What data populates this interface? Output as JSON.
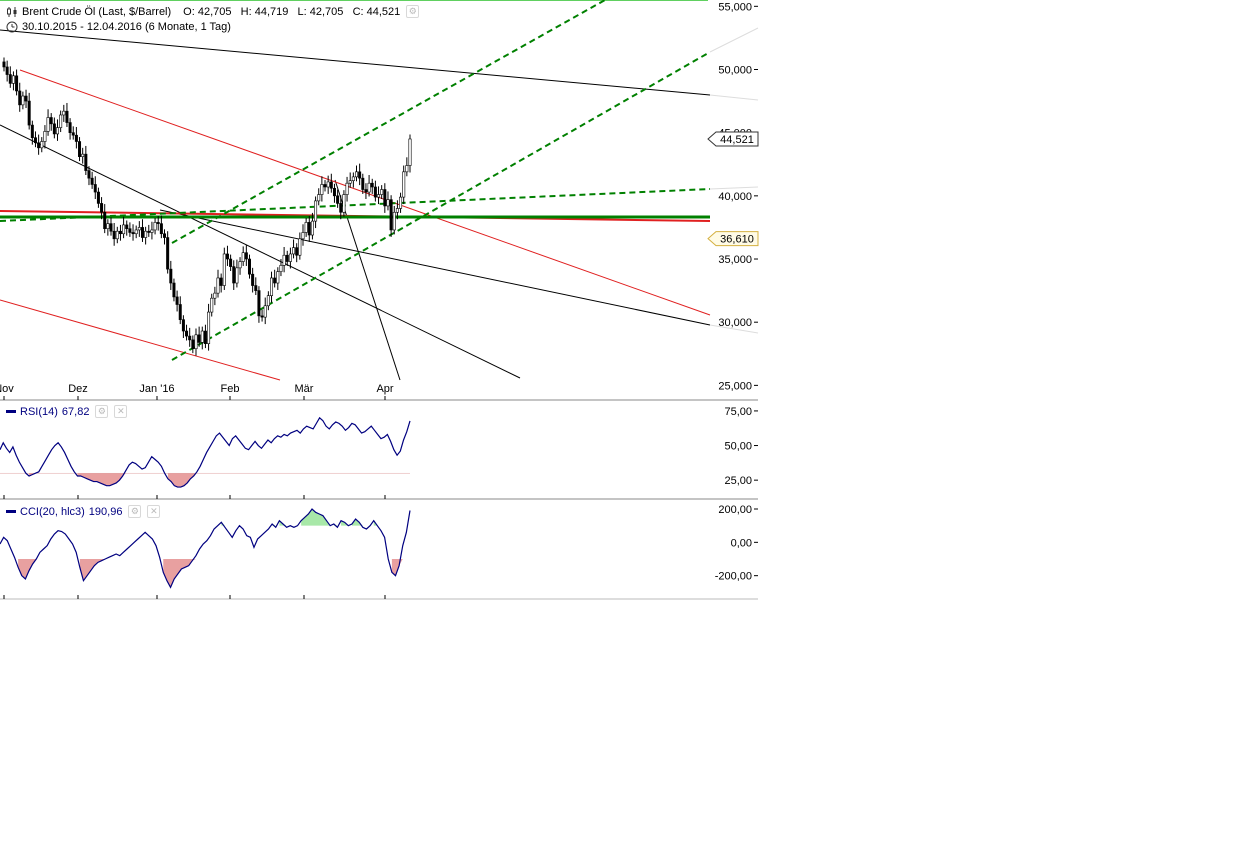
{
  "header": {
    "instrument": "Brent Crude Öl (Last, $/Barrel)",
    "ohlc": "O: 42,705   H: 44,719   L: 42,705   C: 44,521",
    "range": "30.10.2015 - 12.04.2016 (6 Monate, 1 Tag)"
  },
  "price_axis": {
    "ticks": [
      "55,000",
      "50,000",
      "45,000",
      "40,000",
      "35,000",
      "30,000",
      "25,000"
    ],
    "last_price_label": "44,521",
    "level_label": "36,610"
  },
  "x_axis": {
    "labels": [
      "Nov",
      "Dez",
      "Jan '16",
      "Feb",
      "Mär",
      "Apr"
    ]
  },
  "rsi": {
    "title": "RSI(14)",
    "value": "67,82",
    "ticks": [
      "75,00",
      "50,00",
      "25,00"
    ]
  },
  "cci": {
    "title": "CCI(20, hlc3)",
    "value": "190,96",
    "ticks": [
      "200,00",
      "0,00",
      "-200,00"
    ]
  },
  "colors": {
    "up_candle": "#ffffff",
    "down_candle": "#000000",
    "indicator_line": "#000080",
    "trend_red": "#e02020",
    "trend_green": "#008000",
    "oversold_fill": "#e8a0a0",
    "overbought_fill": "#a8e8a8"
  },
  "chart_data": [
    {
      "type": "candlestick",
      "title": "Brent Crude Öl (Last, $/Barrel)",
      "y_unit": "$/Barrel",
      "ylim": [
        24,
        55.5
      ],
      "x_labels": [
        "Nov",
        "Dez",
        "Jan '16",
        "Feb",
        "Mär",
        "Apr"
      ],
      "closes": [
        50.2,
        49.6,
        48.9,
        49.5,
        48.3,
        47.2,
        47.9,
        47.5,
        45.6,
        44.6,
        44.2,
        43.8,
        44.3,
        45.1,
        46.2,
        45.7,
        44.9,
        45.4,
        46.4,
        46.7,
        45.8,
        45.0,
        44.8,
        44.3,
        43.1,
        43.3,
        42.0,
        41.4,
        40.9,
        40.3,
        39.4,
        38.7,
        37.4,
        37.8,
        37.2,
        36.6,
        37.2,
        37.0,
        37.7,
        37.4,
        37.1,
        37.0,
        37.3,
        37.5,
        36.7,
        37.2,
        37.1,
        37.3,
        37.9,
        37.8,
        37.0,
        36.7,
        34.2,
        33.1,
        32.0,
        31.4,
        30.2,
        29.3,
        28.9,
        28.6,
        27.9,
        29.0,
        28.4,
        29.3,
        28.3,
        30.8,
        31.9,
        32.3,
        33.5,
        32.9,
        35.4,
        35.0,
        34.4,
        33.1,
        34.3,
        34.8,
        35.5,
        35.0,
        33.8,
        32.9,
        32.5,
        30.5,
        30.4,
        31.3,
        32.1,
        33.5,
        33.1,
        34.0,
        34.5,
        35.3,
        34.8,
        35.4,
        35.9,
        35.3,
        36.6,
        37.1,
        37.9,
        36.9,
        38.0,
        39.6,
        40.1,
        40.9,
        40.7,
        41.1,
        40.6,
        40.0,
        39.4,
        38.7,
        40.1,
        41.0,
        41.2,
        41.5,
        41.9,
        41.4,
        40.5,
        40.3,
        41.0,
        40.7,
        39.9,
        40.1,
        40.5,
        39.2,
        39.7,
        37.3,
        38.7,
        39.0,
        39.9,
        41.9,
        42.4,
        44.5
      ],
      "indicators": [
        {
          "name": "RSI(14)",
          "last": 67.82,
          "ylim": [
            15,
            80
          ],
          "reference_level": 30,
          "values": [
            47,
            52,
            48,
            45,
            49,
            43,
            38,
            34,
            30,
            28,
            29,
            30,
            31,
            35,
            39,
            43,
            47,
            50,
            52,
            49,
            45,
            40,
            35,
            31,
            28,
            28,
            27,
            26,
            25,
            24,
            24,
            23,
            22,
            21,
            21,
            22,
            23,
            25,
            28,
            32,
            36,
            38,
            37,
            35,
            33,
            34,
            38,
            42,
            40,
            38,
            35,
            30,
            26,
            24,
            21,
            20,
            20,
            21,
            23,
            26,
            28,
            31,
            35,
            40,
            45,
            49,
            53,
            57,
            59,
            56,
            53,
            50,
            55,
            57,
            54,
            51,
            48,
            47,
            50,
            53,
            50,
            48,
            51,
            54,
            52,
            55,
            57,
            56,
            58,
            57,
            59,
            60,
            61,
            59,
            62,
            64,
            63,
            62,
            66,
            70,
            68,
            64,
            62,
            65,
            67,
            66,
            64,
            61,
            63,
            66,
            65,
            62,
            59,
            60,
            62,
            64,
            61,
            58,
            55,
            56,
            58,
            53,
            47,
            43,
            46,
            54,
            60,
            67.8
          ]
        },
        {
          "name": "CCI(20, hlc3)",
          "last": 190.96,
          "ylim": [
            -310,
            230
          ],
          "reference_levels": [
            -100,
            100
          ],
          "values": [
            -10,
            30,
            10,
            -40,
            -90,
            -150,
            -200,
            -220,
            -170,
            -130,
            -100,
            -60,
            -40,
            -20,
            20,
            50,
            70,
            65,
            50,
            20,
            -10,
            -60,
            -150,
            -230,
            -200,
            -170,
            -140,
            -120,
            -110,
            -100,
            -90,
            -80,
            -70,
            -80,
            -60,
            -40,
            -20,
            0,
            20,
            40,
            60,
            40,
            20,
            -20,
            -90,
            -180,
            -230,
            -270,
            -220,
            -190,
            -160,
            -150,
            -140,
            -110,
            -80,
            -40,
            -10,
            10,
            40,
            80,
            100,
            120,
            90,
            60,
            30,
            70,
            100,
            80,
            40,
            30,
            -30,
            20,
            40,
            60,
            80,
            110,
            90,
            130,
            110,
            90,
            100,
            90,
            100,
            130,
            150,
            170,
            200,
            180,
            170,
            160,
            130,
            100,
            110,
            90,
            130,
            120,
            100,
            110,
            140,
            120,
            90,
            80,
            100,
            130,
            100,
            70,
            30,
            -100,
            -180,
            -200,
            -140,
            -20,
            60,
            190.96
          ]
        }
      ]
    }
  ]
}
